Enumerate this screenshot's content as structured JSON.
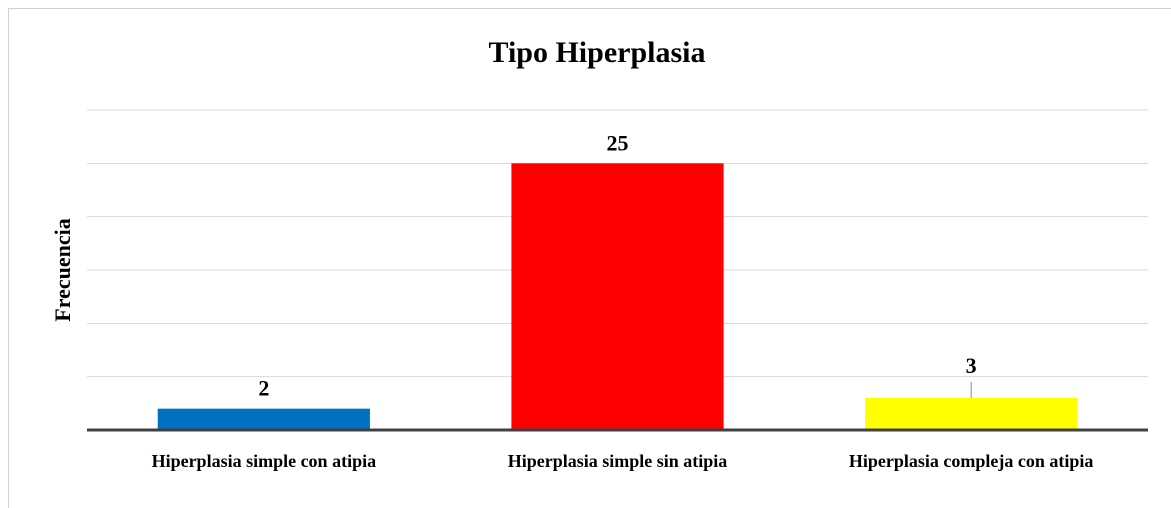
{
  "chart_data": {
    "type": "bar",
    "title": "Tipo Hiperplasia",
    "y_label": "Frecuencia",
    "categories": [
      "Hiperplasia simple con atipia",
      "Hiperplasia simple sin atipia",
      "Hiperplasia compleja con atipia"
    ],
    "values": [
      2,
      25,
      3
    ],
    "colors": [
      "#0070c0",
      "#ff0000",
      "#ffff00"
    ],
    "ylim": [
      0,
      30
    ],
    "yticks": [
      0,
      5,
      10,
      15,
      20,
      25,
      30
    ],
    "grid": true
  }
}
